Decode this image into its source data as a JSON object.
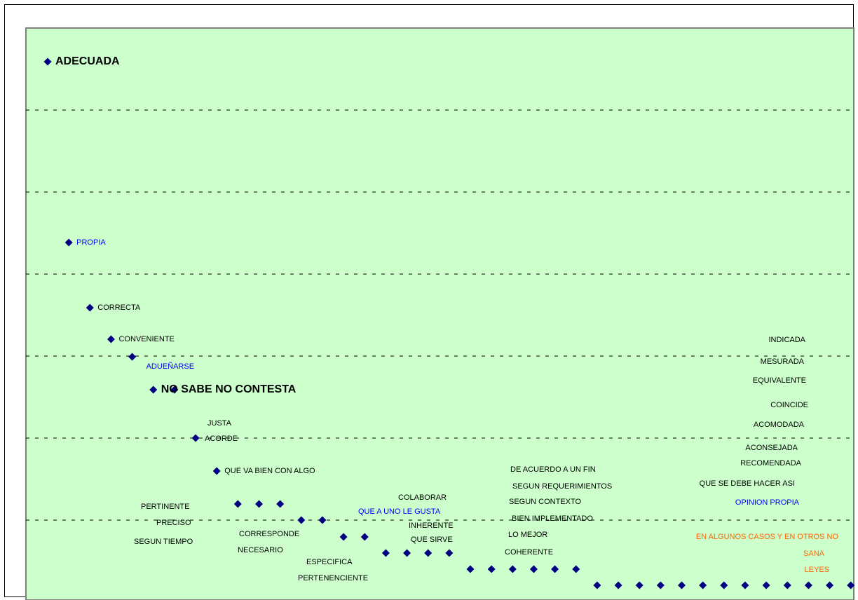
{
  "chart_data": {
    "type": "scatter",
    "grid": true,
    "legend": "none",
    "colors": {
      "plot_background": "#ccffcc",
      "marker": "#000080",
      "gridline": "#000000",
      "label_default": "#000000",
      "label_blue": "#0000ff",
      "label_orange": "#ff6600"
    },
    "points": [
      {
        "label": "ADECUADA",
        "x": 1,
        "y": 10
      },
      {
        "label": "PROPIA",
        "x": 2,
        "y": 5
      },
      {
        "label": "CORRECTA",
        "x": 3,
        "y": 4
      },
      {
        "label": "CONVENIENTE",
        "x": 4,
        "y": 3
      },
      {
        "label": "ADUEÑARSE",
        "x": 5,
        "y": 3
      },
      {
        "label": "NO SABE NO CONTESTA",
        "x": 6,
        "y": 2
      },
      {
        "label": "",
        "x": 7,
        "y": 2
      },
      {
        "label": "",
        "x": 8,
        "y": 2
      },
      {
        "label": "QUE VA BIEN CON ALGO",
        "x": 9,
        "y": 1
      },
      {
        "label": "",
        "x": 10,
        "y": 1
      },
      {
        "label": "",
        "x": 11,
        "y": 1
      },
      {
        "label": "",
        "x": 12,
        "y": 1
      },
      {
        "label": "",
        "x": 13,
        "y": 0
      },
      {
        "label": "",
        "x": 14,
        "y": 0
      },
      {
        "label": "",
        "x": 15,
        "y": 0
      },
      {
        "label": "",
        "x": 16,
        "y": 0
      },
      {
        "label": "",
        "x": 17,
        "y": 0
      },
      {
        "label": "",
        "x": 18,
        "y": 0
      },
      {
        "label": "",
        "x": 19,
        "y": 0
      },
      {
        "label": "",
        "x": 20,
        "y": 0
      },
      {
        "label": "",
        "x": 21,
        "y": 0
      },
      {
        "label": "",
        "x": 22,
        "y": 0
      },
      {
        "label": "",
        "x": 23,
        "y": 0
      },
      {
        "label": "",
        "x": 24,
        "y": 0
      },
      {
        "label": "",
        "x": 25,
        "y": 0
      },
      {
        "label": "",
        "x": 26,
        "y": 0
      },
      {
        "label": "",
        "x": 27,
        "y": 0
      },
      {
        "label": "",
        "x": 28,
        "y": 0
      },
      {
        "label": "",
        "x": 29,
        "y": 0
      },
      {
        "label": "",
        "x": 30,
        "y": 0
      },
      {
        "label": "",
        "x": 31,
        "y": 0
      },
      {
        "label": "",
        "x": 32,
        "y": 0
      },
      {
        "label": "",
        "x": 33,
        "y": 0
      },
      {
        "label": "",
        "x": 34,
        "y": 0
      },
      {
        "label": "",
        "x": 35,
        "y": 0
      },
      {
        "label": "",
        "x": 36,
        "y": 0
      },
      {
        "label": "",
        "x": 37,
        "y": 0
      },
      {
        "label": "",
        "x": 38,
        "y": 0
      },
      {
        "label": "",
        "x": 39,
        "y": 0
      }
    ],
    "free_labels": [
      {
        "text": "JUSTA"
      },
      {
        "text": "ACORDE"
      },
      {
        "text": "PERTINENTE"
      },
      {
        "text": "PRECISO"
      },
      {
        "text": "SEGUN TIEMPO"
      },
      {
        "text": "CORRESPONDE"
      },
      {
        "text": "NECESARIO"
      },
      {
        "text": "ESPECIFICA"
      },
      {
        "text": "PERTENENCIENTE"
      },
      {
        "text": "COLABORAR"
      },
      {
        "text": "QUE A UNO LE GUSTA"
      },
      {
        "text": "INHERENTE"
      },
      {
        "text": "QUE SIRVE"
      },
      {
        "text": "DE ACUERDO A UN FIN"
      },
      {
        "text": "SEGUN REQUERIMIENTOS"
      },
      {
        "text": "SEGUN CONTEXTO"
      },
      {
        "text": "BIEN IMPLEMENTADO"
      },
      {
        "text": "LO MEJOR"
      },
      {
        "text": "COHERENTE"
      },
      {
        "text": "INDICADA"
      },
      {
        "text": "MESURADA"
      },
      {
        "text": "EQUIVALENTE"
      },
      {
        "text": "COINCIDE"
      },
      {
        "text": "ACOMODADA"
      },
      {
        "text": "ACONSEJADA"
      },
      {
        "text": "RECOMENDADA"
      },
      {
        "text": "QUE SE DEBE HACER ASI"
      },
      {
        "text": "OPINION PROPIA"
      },
      {
        "text": "EN ALGUNOS CASOS Y EN OTROS NO"
      },
      {
        "text": "SANA"
      },
      {
        "text": "LEYES"
      }
    ]
  }
}
